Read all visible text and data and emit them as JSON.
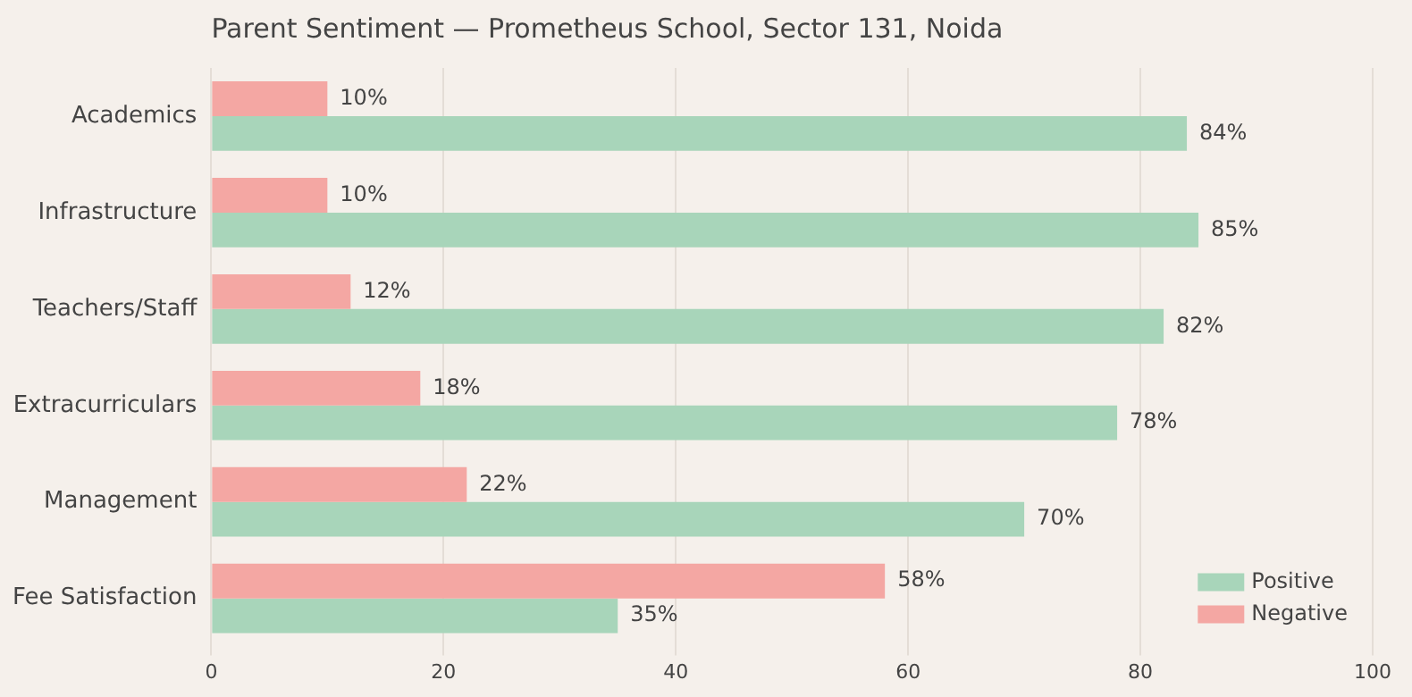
{
  "chart_data": {
    "type": "bar",
    "orientation": "horizontal",
    "title": "Parent Sentiment — Prometheus School, Sector 131, Noida",
    "categories": [
      "Academics",
      "Infrastructure",
      "Teachers/Staff",
      "Extracurriculars",
      "Management",
      "Fee Satisfaction"
    ],
    "series": [
      {
        "name": "Positive",
        "color": "#a8d5ba",
        "values": [
          84,
          85,
          82,
          78,
          70,
          35
        ],
        "value_labels": [
          "84%",
          "85%",
          "82%",
          "78%",
          "70%",
          "35%"
        ]
      },
      {
        "name": "Negative",
        "color": "#f4a7a3",
        "values": [
          10,
          10,
          12,
          18,
          22,
          58
        ],
        "value_labels": [
          "10%",
          "10%",
          "12%",
          "18%",
          "22%",
          "58%"
        ]
      }
    ],
    "xlim": [
      0,
      100
    ],
    "xticks": [
      0,
      20,
      40,
      60,
      80,
      100
    ],
    "grid": "x",
    "legend": "bottom right"
  }
}
